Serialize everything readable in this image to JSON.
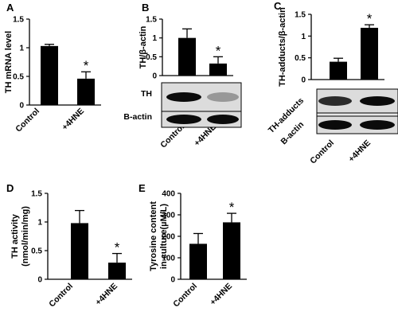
{
  "chart_data": [
    {
      "panel": "A",
      "type": "bar",
      "ylabel": "TH mRNA level",
      "ylim": [
        0,
        1.5
      ],
      "yticks": [
        "0",
        "0.5",
        "1",
        "1.5"
      ],
      "categories": [
        "Control",
        "+4HNE"
      ],
      "values": [
        1.03,
        0.46
      ],
      "errors": [
        0.03,
        0.12
      ],
      "significance": [
        "",
        "*"
      ]
    },
    {
      "panel": "B",
      "type": "bar",
      "ylabel": "TH/β-actin",
      "ylim": [
        0,
        1.5
      ],
      "yticks": [
        "0",
        "0.5",
        "1",
        "1.5"
      ],
      "categories": [
        "Control",
        "+4HNE"
      ],
      "values": [
        1.0,
        0.32
      ],
      "errors": [
        0.24,
        0.18
      ],
      "significance": [
        "",
        "*"
      ],
      "blot_labels": [
        "TH",
        "B-actin"
      ]
    },
    {
      "panel": "C",
      "type": "bar",
      "ylabel": "TH-adducts/β-actin",
      "ylim": [
        0,
        1.5
      ],
      "yticks": [
        "0",
        "0.5",
        "1",
        "1.5"
      ],
      "categories": [
        "Control",
        "+4HNE"
      ],
      "values": [
        0.41,
        1.19
      ],
      "errors": [
        0.08,
        0.07
      ],
      "significance": [
        "",
        "*"
      ],
      "blot_labels": [
        "TH-adducts",
        "B-actin"
      ]
    },
    {
      "panel": "D",
      "type": "bar",
      "ylabel": [
        "TH activity",
        "(nmol/min/mg)"
      ],
      "ylim": [
        0,
        1.5
      ],
      "yticks": [
        "0",
        "0.5",
        "1",
        "1.5"
      ],
      "categories": [
        "Control",
        "+4HNE"
      ],
      "values": [
        0.98,
        0.29
      ],
      "errors": [
        0.22,
        0.16
      ],
      "significance": [
        "",
        "*"
      ]
    },
    {
      "panel": "E",
      "type": "bar",
      "ylabel": [
        "Tyrosine content",
        "in culture(µM/L)"
      ],
      "ylim": [
        0,
        400
      ],
      "yticks": [
        "0",
        "100",
        "200",
        "300",
        "400"
      ],
      "categories": [
        "Control",
        "+4HNE"
      ],
      "values": [
        165,
        265
      ],
      "errors": [
        48,
        42
      ],
      "significance": [
        "",
        "*"
      ]
    }
  ]
}
